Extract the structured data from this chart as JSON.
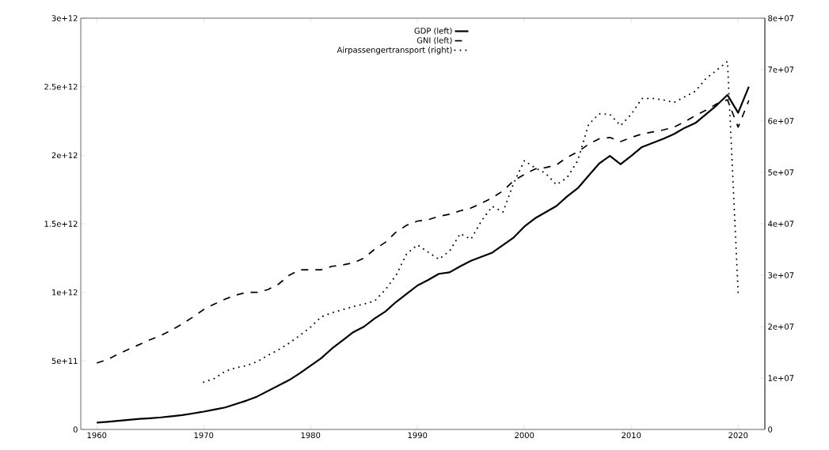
{
  "chart_data": {
    "type": "line",
    "x": [
      1960,
      1961,
      1962,
      1963,
      1964,
      1965,
      1966,
      1967,
      1968,
      1969,
      1970,
      1971,
      1972,
      1973,
      1974,
      1975,
      1976,
      1977,
      1978,
      1979,
      1980,
      1981,
      1982,
      1983,
      1984,
      1985,
      1986,
      1987,
      1988,
      1989,
      1990,
      1991,
      1992,
      1993,
      1994,
      1995,
      1996,
      1997,
      1998,
      1999,
      2000,
      2001,
      2002,
      2003,
      2004,
      2005,
      2006,
      2007,
      2008,
      2009,
      2010,
      2011,
      2012,
      2013,
      2014,
      2015,
      2016,
      2017,
      2018,
      2019,
      2020,
      2021
    ],
    "series": [
      {
        "name": "GDP  (left)",
        "color": "#000000",
        "line_style": "solid",
        "axis": "y",
        "values": [
          50000000000.0,
          56000000000.0,
          63000000000.0,
          70000000000.0,
          77000000000.0,
          82000000000.0,
          88000000000.0,
          96000000000.0,
          105000000000.0,
          117000000000.0,
          130000000000.0,
          145000000000.0,
          160000000000.0,
          185000000000.0,
          210000000000.0,
          240000000000.0,
          280000000000.0,
          320000000000.0,
          360000000000.0,
          410000000000.0,
          465000000000.0,
          520000000000.0,
          590000000000.0,
          650000000000.0,
          710000000000.0,
          750000000000.0,
          810000000000.0,
          860000000000.0,
          930000000000.0,
          990000000000.0,
          1050000000000.0,
          1090000000000.0,
          1135000000000.0,
          1146000000000.0,
          1190000000000.0,
          1230000000000.0,
          1260000000000.0,
          1290000000000.0,
          1345000000000.0,
          1400000000000.0,
          1480000000000.0,
          1540000000000.0,
          1585000000000.0,
          1630000000000.0,
          1700000000000.0,
          1760000000000.0,
          1850000000000.0,
          1940000000000.0,
          1995000000000.0,
          1935000000000.0,
          1995000000000.0,
          2060000000000.0,
          2090000000000.0,
          2120000000000.0,
          2155000000000.0,
          2200000000000.0,
          2235000000000.0,
          2300000000000.0,
          2365000000000.0,
          2440000000000.0,
          2310000000000.0,
          2500000000000.0
        ]
      },
      {
        "name": "GNI  (left)",
        "color": "#000000",
        "line_style": "dashed",
        "axis": "y",
        "values": [
          485000000000.0,
          510000000000.0,
          550000000000.0,
          585000000000.0,
          620000000000.0,
          655000000000.0,
          685000000000.0,
          725000000000.0,
          770000000000.0,
          820000000000.0,
          875000000000.0,
          915000000000.0,
          950000000000.0,
          980000000000.0,
          1000000000000.0,
          1000000000000.0,
          1020000000000.0,
          1060000000000.0,
          1125000000000.0,
          1165000000000.0,
          1165000000000.0,
          1165000000000.0,
          1190000000000.0,
          1200000000000.0,
          1215000000000.0,
          1250000000000.0,
          1315000000000.0,
          1365000000000.0,
          1440000000000.0,
          1490000000000.0,
          1520000000000.0,
          1530000000000.0,
          1555000000000.0,
          1570000000000.0,
          1595000000000.0,
          1615000000000.0,
          1650000000000.0,
          1690000000000.0,
          1740000000000.0,
          1815000000000.0,
          1860000000000.0,
          1900000000000.0,
          1910000000000.0,
          1930000000000.0,
          1985000000000.0,
          2025000000000.0,
          2080000000000.0,
          2120000000000.0,
          2130000000000.0,
          2100000000000.0,
          2130000000000.0,
          2155000000000.0,
          2170000000000.0,
          2185000000000.0,
          2205000000000.0,
          2245000000000.0,
          2290000000000.0,
          2330000000000.0,
          2375000000000.0,
          2405000000000.0,
          2205000000000.0,
          2400000000000.0
        ]
      },
      {
        "name": "Airpassengertransport  (right)",
        "color": "#000000",
        "line_style": "dotted",
        "axis": "y2",
        "values": [
          null,
          null,
          null,
          null,
          null,
          null,
          null,
          null,
          null,
          null,
          9200000.0,
          9900000.0,
          11300000.0,
          12000000.0,
          12400000.0,
          13200000.0,
          14400000.0,
          15500000.0,
          16800000.0,
          18300000.0,
          19900000.0,
          21900000.0,
          22700000.0,
          23300000.0,
          23900000.0,
          24400000.0,
          25000000.0,
          27200000.0,
          30000000.0,
          34200000.0,
          35900000.0,
          34500000.0,
          33100000.0,
          34700000.0,
          38100000.0,
          37000000.0,
          40600000.0,
          43400000.0,
          42300000.0,
          47900000.0,
          52300000.0,
          50900000.0,
          49800000.0,
          47600000.0,
          49000000.0,
          52300000.0,
          59300000.0,
          61400000.0,
          61300000.0,
          59100000.0,
          61300000.0,
          64400000.0,
          64400000.0,
          64100000.0,
          63600000.0,
          64700000.0,
          65800000.0,
          68300000.0,
          69900000.0,
          71600000.0,
          26600000.0,
          null
        ]
      }
    ],
    "xlim": [
      1958.5,
      2022.5
    ],
    "xticks": [
      1960,
      1970,
      1980,
      1990,
      2000,
      2010,
      2020
    ],
    "ylim": [
      0,
      3000000000000.0
    ],
    "yticks": [
      0,
      {
        "value": 500000000000.0,
        "label": "5e+11"
      },
      {
        "value": 1000000000000.0,
        "label": "1e+12"
      },
      {
        "value": 1500000000000.0,
        "label": "1.5e+12"
      },
      {
        "value": 2000000000000.0,
        "label": "2e+12"
      },
      {
        "value": 2500000000000.0,
        "label": "2.5e+12"
      },
      {
        "value": 3000000000000.0,
        "label": "3e+12"
      }
    ],
    "y2lim": [
      0,
      80000000.0
    ],
    "y2ticks": [
      0,
      {
        "value": 10000000.0,
        "label": "1e+07"
      },
      {
        "value": 20000000.0,
        "label": "2e+07"
      },
      {
        "value": 30000000.0,
        "label": "3e+07"
      },
      {
        "value": 40000000.0,
        "label": "4e+07"
      },
      {
        "value": 50000000.0,
        "label": "5e+07"
      },
      {
        "value": 60000000.0,
        "label": "6e+07"
      },
      {
        "value": 70000000.0,
        "label": "7e+07"
      },
      {
        "value": 80000000.0,
        "label": "8e+07"
      }
    ],
    "legend": "top",
    "grid": false
  }
}
